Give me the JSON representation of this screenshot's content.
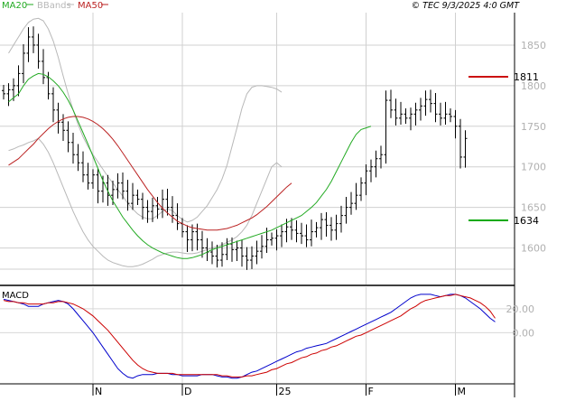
{
  "header": {
    "legend": [
      {
        "label": "MA20",
        "color": "#22aa22"
      },
      {
        "label": "BBands",
        "color": "#b8b8b8"
      },
      {
        "label": "MA50",
        "color": "#bb2222"
      }
    ],
    "copyright": "© TEC 9/3/2025 4:0 GMT"
  },
  "chart_data": [
    {
      "type": "line",
      "subtype": "ohlc-bars",
      "ylim": [
        1555,
        1890
      ],
      "yticks": [
        1600,
        1650,
        1700,
        1750,
        1800,
        1850
      ],
      "x_labels": [
        {
          "label": "N",
          "index": 18
        },
        {
          "label": "D",
          "index": 36
        },
        {
          "label": "25",
          "index": 55
        },
        {
          "label": "F",
          "index": 73
        },
        {
          "label": "M",
          "index": 91
        }
      ],
      "grid": true,
      "levels": [
        {
          "label": "1811",
          "value": 1811,
          "color": "#cc1111"
        },
        {
          "label": "1634",
          "value": 1634,
          "color": "#11aa11"
        }
      ],
      "close": [
        1790,
        1795,
        1800,
        1815,
        1840,
        1860,
        1850,
        1830,
        1810,
        1790,
        1770,
        1755,
        1745,
        1730,
        1715,
        1705,
        1690,
        1680,
        1690,
        1670,
        1680,
        1665,
        1672,
        1680,
        1670,
        1655,
        1665,
        1660,
        1650,
        1645,
        1652,
        1648,
        1660,
        1650,
        1640,
        1630,
        1620,
        1610,
        1620,
        1610,
        1600,
        1595,
        1590,
        1585,
        1592,
        1605,
        1598,
        1600,
        1590,
        1585,
        1590,
        1596,
        1602,
        1610,
        1612,
        1615,
        1620,
        1626,
        1622,
        1618,
        1615,
        1610,
        1620,
        1625,
        1635,
        1628,
        1622,
        1630,
        1640,
        1650,
        1655,
        1665,
        1680,
        1695,
        1700,
        1710,
        1715,
        1782,
        1770,
        1760,
        1765,
        1760,
        1765,
        1770,
        1775,
        1783,
        1778,
        1765,
        1760,
        1765,
        1762,
        1750,
        1712,
        1735
      ],
      "series": [
        {
          "name": "MA20",
          "color": "#22aa22",
          "x0": 1,
          "values": [
            1780,
            1785,
            1790,
            1800,
            1808,
            1812,
            1815,
            1814,
            1811,
            1806,
            1800,
            1792,
            1782,
            1770,
            1756,
            1742,
            1728,
            1713,
            1698,
            1683,
            1670,
            1658,
            1648,
            1638,
            1630,
            1622,
            1615,
            1609,
            1604,
            1600,
            1597,
            1594,
            1592,
            1590,
            1588,
            1587,
            1587,
            1588,
            1590,
            1592,
            1595,
            1598,
            1600,
            1602,
            1604,
            1606,
            1608,
            1610,
            1612,
            1614,
            1616,
            1618,
            1620,
            1622,
            1625,
            1628,
            1631,
            1634,
            1637,
            1640,
            1645,
            1650,
            1656,
            1664,
            1672,
            1682,
            1694,
            1706,
            1718,
            1730,
            1740,
            1746,
            1748,
            1750
          ]
        },
        {
          "name": "MA50",
          "color": "#bb2222",
          "x0": 1,
          "values": [
            1702,
            1706,
            1710,
            1716,
            1722,
            1728,
            1735,
            1741,
            1747,
            1752,
            1756,
            1759,
            1761,
            1762,
            1762,
            1761,
            1759,
            1756,
            1752,
            1747,
            1741,
            1734,
            1726,
            1717,
            1708,
            1699,
            1690,
            1681,
            1672,
            1664,
            1656,
            1649,
            1643,
            1638,
            1633,
            1630,
            1627,
            1625,
            1624,
            1623,
            1622,
            1622,
            1622,
            1623,
            1624,
            1626,
            1628,
            1631,
            1634,
            1637,
            1641,
            1646,
            1651,
            1657,
            1663,
            1669,
            1675,
            1680
          ]
        },
        {
          "name": "BBands upper",
          "color": "#b8b8b8",
          "x0": 1,
          "values": [
            1840,
            1850,
            1860,
            1870,
            1878,
            1882,
            1883,
            1880,
            1870,
            1855,
            1835,
            1812,
            1790,
            1770,
            1752,
            1737,
            1725,
            1715,
            1706,
            1697,
            1688,
            1680,
            1672,
            1664,
            1655,
            1648,
            1642,
            1638,
            1636,
            1636,
            1640,
            1645,
            1648,
            1646,
            1640,
            1635,
            1632,
            1634,
            1638,
            1645,
            1652,
            1662,
            1672,
            1685,
            1702,
            1725,
            1748,
            1772,
            1790,
            1798,
            1800,
            1800,
            1799,
            1798,
            1796,
            1792
          ]
        },
        {
          "name": "BBands lower",
          "color": "#b8b8b8",
          "x0": 1,
          "values": [
            1720,
            1722,
            1725,
            1727,
            1730,
            1732,
            1735,
            1728,
            1718,
            1705,
            1690,
            1675,
            1660,
            1645,
            1632,
            1620,
            1610,
            1602,
            1596,
            1590,
            1585,
            1582,
            1580,
            1578,
            1577,
            1577,
            1578,
            1580,
            1583,
            1586,
            1590,
            1592,
            1594,
            1595,
            1595,
            1594,
            1593,
            1593,
            1594,
            1596,
            1598,
            1600,
            1602,
            1604,
            1607,
            1610,
            1614,
            1620,
            1628,
            1640,
            1655,
            1670,
            1685,
            1700,
            1705,
            1700
          ]
        }
      ]
    },
    {
      "type": "line",
      "title": "MACD",
      "ylim": [
        -42,
        38
      ],
      "yticks": [
        0,
        20
      ],
      "ytick_labels": [
        "0.00",
        "20.00"
      ],
      "series": [
        {
          "name": "MACD",
          "color": "#0000cc",
          "x0": 0,
          "values": [
            28,
            27,
            26,
            25,
            24,
            22,
            22,
            22,
            24,
            25,
            26,
            27,
            26,
            24,
            20,
            15,
            10,
            5,
            0,
            -6,
            -12,
            -18,
            -24,
            -30,
            -34,
            -37,
            -38,
            -36,
            -35,
            -35,
            -35,
            -34,
            -34,
            -34,
            -35,
            -35,
            -36,
            -36,
            -36,
            -36,
            -35,
            -35,
            -35,
            -36,
            -37,
            -37,
            -38,
            -38,
            -37,
            -35,
            -33,
            -32,
            -30,
            -28,
            -26,
            -24,
            -22,
            -20,
            -18,
            -16,
            -15,
            -13,
            -12,
            -11,
            -10,
            -9,
            -7,
            -5,
            -3,
            -1,
            1,
            3,
            5,
            7,
            9,
            11,
            13,
            15,
            17,
            20,
            23,
            26,
            29,
            31,
            32,
            32,
            32,
            31,
            30,
            31,
            32,
            32,
            31,
            29,
            26,
            23,
            20,
            16,
            12,
            9
          ]
        },
        {
          "name": "Signal",
          "color": "#cc0000",
          "x0": 0,
          "values": [
            27,
            26,
            26,
            25,
            25,
            24,
            24,
            24,
            24,
            25,
            25,
            26,
            26,
            25,
            24,
            22,
            20,
            17,
            14,
            10,
            6,
            2,
            -3,
            -8,
            -13,
            -18,
            -23,
            -27,
            -30,
            -32,
            -33,
            -34,
            -34,
            -34,
            -34,
            -35,
            -35,
            -35,
            -35,
            -35,
            -35,
            -35,
            -35,
            -35,
            -36,
            -36,
            -37,
            -37,
            -37,
            -36,
            -36,
            -35,
            -34,
            -33,
            -31,
            -30,
            -28,
            -26,
            -25,
            -23,
            -21,
            -20,
            -18,
            -17,
            -15,
            -14,
            -12,
            -11,
            -9,
            -7,
            -5,
            -3,
            -2,
            0,
            2,
            4,
            6,
            8,
            10,
            12,
            14,
            17,
            20,
            22,
            25,
            27,
            28,
            29,
            30,
            31,
            31,
            32,
            31,
            30,
            29,
            27,
            25,
            22,
            18,
            12
          ]
        }
      ]
    }
  ]
}
